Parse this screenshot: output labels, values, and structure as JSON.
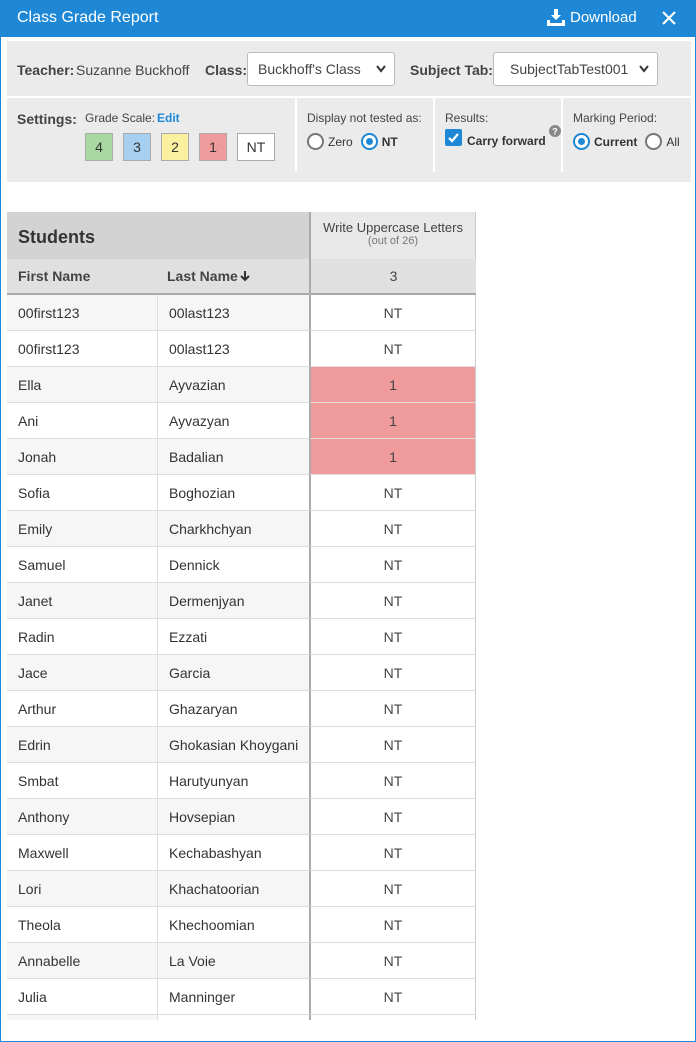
{
  "header": {
    "title": "Class Grade Report",
    "download": "Download"
  },
  "filters": {
    "teacher_label": "Teacher:",
    "teacher": "Suzanne Buckhoff",
    "class_label": "Class:",
    "class": "Buckhoff's Class",
    "subject_label": "Subject Tab:",
    "subject": "SubjectTabTest001"
  },
  "settings": {
    "label": "Settings:",
    "grade_scale_label": "Grade Scale:",
    "edit": "Edit",
    "grade_scale": [
      {
        "label": "4",
        "color": "#a9d8a2"
      },
      {
        "label": "3",
        "color": "#a6cff0"
      },
      {
        "label": "2",
        "color": "#fbf0a0"
      },
      {
        "label": "1",
        "color": "#ef9b9b"
      },
      {
        "label": "NT",
        "color": "#ffffff"
      }
    ],
    "not_tested_label": "Display not tested as:",
    "not_tested_options": [
      "Zero",
      "NT"
    ],
    "not_tested_selected": 1,
    "results_label": "Results:",
    "carry_forward": "Carry forward",
    "carry_forward_checked": true,
    "marking_period_label": "Marking Period:",
    "marking_period_options": [
      "Current",
      "All"
    ],
    "marking_period_selected": 0
  },
  "table": {
    "group_header": "Students",
    "assignment": "Write Uppercase Letters",
    "assignment_note": "(out of 26)",
    "columns": [
      "First Name",
      "Last Name"
    ],
    "assignment_count": "3",
    "rows": [
      [
        "00first123",
        "00last123",
        "NT"
      ],
      [
        "00first123",
        "00last123",
        "NT"
      ],
      [
        "Ella",
        "Ayvazian",
        "1"
      ],
      [
        "Ani",
        "Ayvazyan",
        "1"
      ],
      [
        "Jonah",
        "Badalian",
        "1"
      ],
      [
        "Sofia",
        "Boghozian",
        "NT"
      ],
      [
        "Emily",
        "Charkhchyan",
        "NT"
      ],
      [
        "Samuel",
        "Dennick",
        "NT"
      ],
      [
        "Janet",
        "Dermenjyan",
        "NT"
      ],
      [
        "Radin",
        "Ezzati",
        "NT"
      ],
      [
        "Jace",
        "Garcia",
        "NT"
      ],
      [
        "Arthur",
        "Ghazaryan",
        "NT"
      ],
      [
        "Edrin",
        "Ghokasian Khoygani",
        "NT"
      ],
      [
        "Smbat",
        "Harutyunyan",
        "NT"
      ],
      [
        "Anthony",
        "Hovsepian",
        "NT"
      ],
      [
        "Maxwell",
        "Kechabashyan",
        "NT"
      ],
      [
        "Lori",
        "Khachatoorian",
        "NT"
      ],
      [
        "Theola",
        "Khechoomian",
        "NT"
      ],
      [
        "Annabelle",
        "La Voie",
        "NT"
      ],
      [
        "Julia",
        "Manninger",
        "NT"
      ]
    ]
  }
}
